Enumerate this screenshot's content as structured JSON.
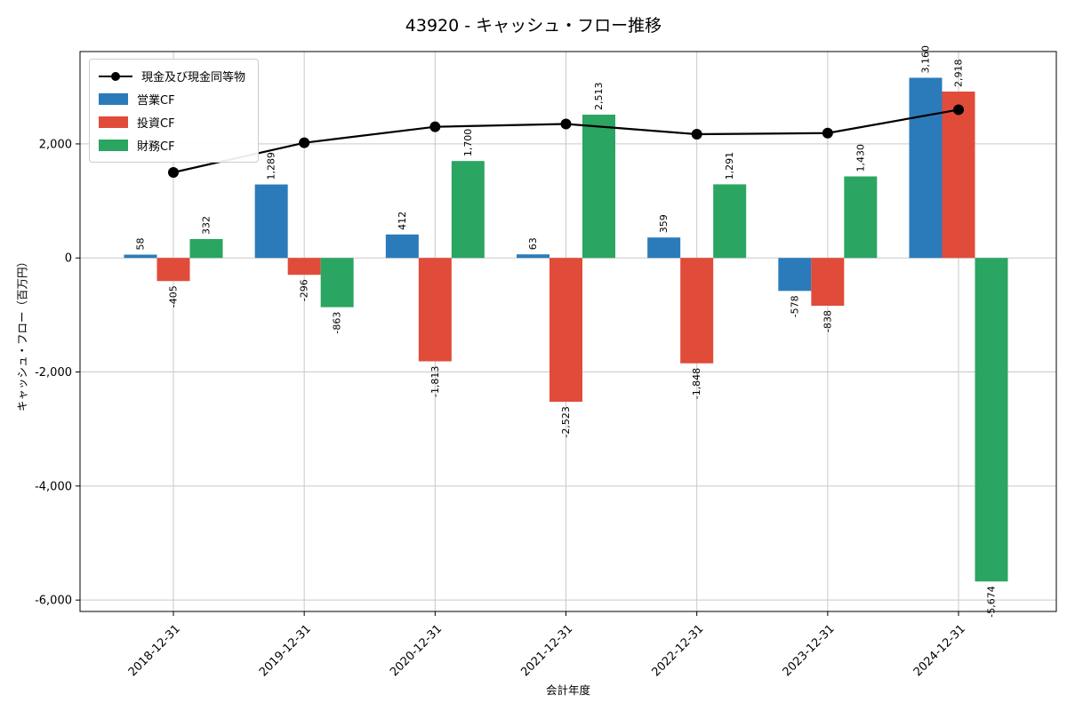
{
  "title": "43920 - キャッシュ・フロー推移",
  "chart_data": {
    "type": "bar",
    "title": "43920 - キャッシュ・フロー推移",
    "xlabel": "会計年度",
    "ylabel": "キャッシュ・フロー（百万円）",
    "categories": [
      "2018-12-31",
      "2019-12-31",
      "2020-12-31",
      "2021-12-31",
      "2022-12-31",
      "2023-12-31",
      "2024-12-31"
    ],
    "series": [
      {
        "name": "営業CF",
        "type": "bar",
        "color": "#2b7bba",
        "values": [
          58,
          1289,
          412,
          63,
          359,
          -578,
          3160
        ]
      },
      {
        "name": "投資CF",
        "type": "bar",
        "color": "#e14b39",
        "values": [
          -405,
          -296,
          -1813,
          -2523,
          -1848,
          -838,
          2918
        ]
      },
      {
        "name": "財務CF",
        "type": "bar",
        "color": "#2aa562",
        "values": [
          332,
          -863,
          1700,
          2513,
          1291,
          1430,
          -5674
        ]
      }
    ],
    "line_series": {
      "name": "現金及び現金同等物",
      "color": "#000000",
      "values": [
        1500,
        2020,
        2300,
        2350,
        2170,
        2190,
        2600
      ]
    },
    "yticks": [
      2000,
      0,
      -2000,
      -4000,
      -6000
    ],
    "ylim": [
      -6200,
      3620
    ],
    "grid": true,
    "legend_position": "upper-left",
    "bar_value_labels": true
  }
}
